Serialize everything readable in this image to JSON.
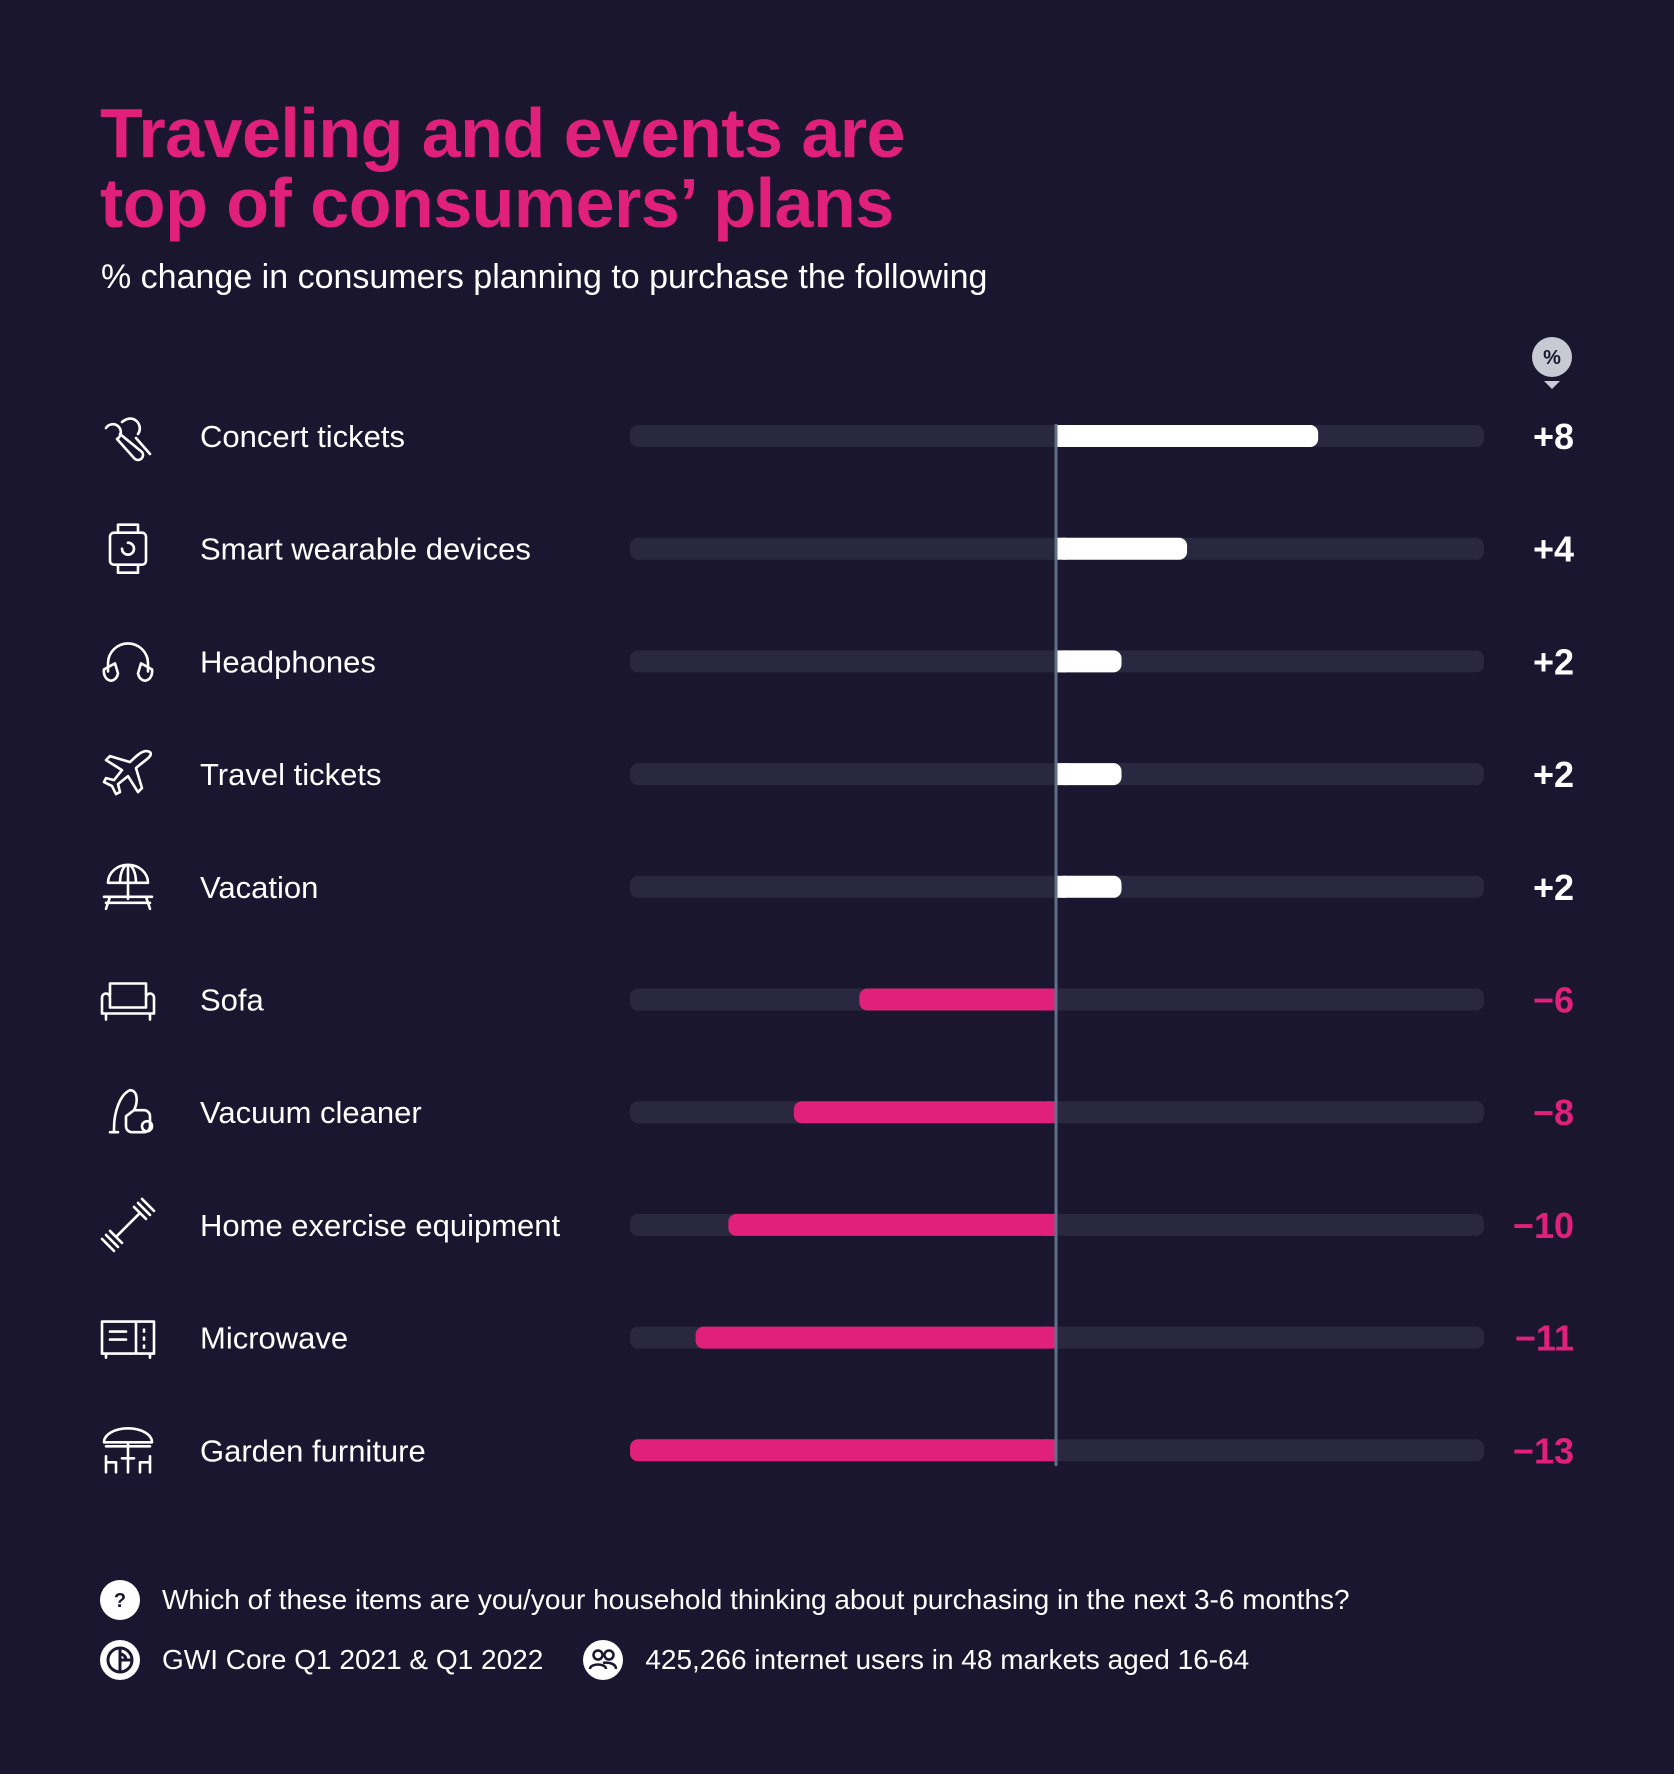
{
  "title_lines": [
    "Traveling and events are",
    "top of consumers’ plans"
  ],
  "subtitle": "% change in consumers planning to purchase the following",
  "unit_badge": "%",
  "colors": {
    "background": "#1a1630",
    "title": "#e0207a",
    "positive_bar": "#ffffff",
    "negative_bar": "#e0207a",
    "track": "#2a2740",
    "zero_line": "#5f7189"
  },
  "chart_data": {
    "type": "bar",
    "orientation": "horizontal",
    "title": "Traveling and events are top of consumers’ plans",
    "subtitle": "% change in consumers planning to purchase the following",
    "unit": "%",
    "xlim": [
      -13,
      13
    ],
    "categories": [
      "Concert tickets",
      "Smart wearable devices",
      "Headphones",
      "Travel tickets",
      "Vacation",
      "Sofa",
      "Vacuum cleaner",
      "Home exercise equipment",
      "Microwave",
      "Garden furniture"
    ],
    "values": [
      8,
      4,
      2,
      2,
      2,
      -6,
      -8,
      -10,
      -11,
      -13
    ],
    "value_labels": [
      "+8",
      "+4",
      "+2",
      "+2",
      "+2",
      "−6",
      "−8",
      "−10",
      "−11",
      "−13"
    ],
    "icons": [
      "microphone-icon",
      "smartwatch-icon",
      "headphones-icon",
      "airplane-icon",
      "beach-umbrella-icon",
      "sofa-icon",
      "vacuum-cleaner-icon",
      "dumbbell-icon",
      "microwave-icon",
      "garden-furniture-icon"
    ]
  },
  "footer": {
    "question_icon": "question-icon",
    "question": "Which of these items are you/your household thinking about purchasing in the next 3-6 months?",
    "source_icon": "gwi-logo-icon",
    "source": "GWI Core Q1 2021 & Q1 2022",
    "sample_icon": "users-icon",
    "sample": "425,266 internet users in 48 markets aged 16-64"
  }
}
